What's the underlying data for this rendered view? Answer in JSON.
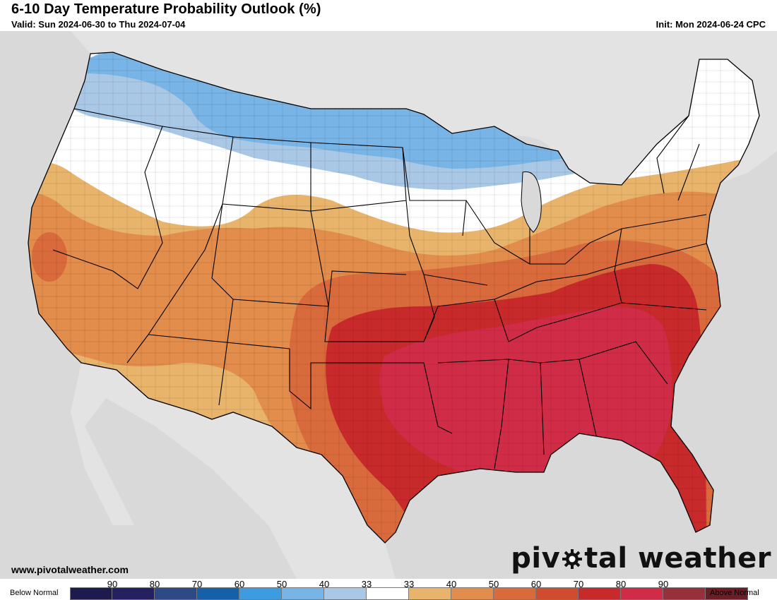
{
  "header": {
    "title": "6-10 Day Temperature Probability Outlook (%)",
    "valid": "Valid: Sun 2024-06-30 to Thu 2024-07-04",
    "init": "Init: Mon 2024-06-24 CPC"
  },
  "footer": {
    "site": "www.pivotalweather.com",
    "brand_left": "piv",
    "brand_right": "tal weather"
  },
  "legend": {
    "below_label": "Below Normal",
    "above_label": "Above Normal",
    "swatches": [
      {
        "color": "#1d1a4d"
      },
      {
        "color": "#25205f"
      },
      {
        "color": "#2d4a86"
      },
      {
        "color": "#1560a8"
      },
      {
        "color": "#3d9be0"
      },
      {
        "color": "#79b4e6"
      },
      {
        "color": "#a9c8e6"
      },
      {
        "color": "#ffffff"
      },
      {
        "color": "#e8b46b"
      },
      {
        "color": "#e38d4c"
      },
      {
        "color": "#d96a3c"
      },
      {
        "color": "#d14b30"
      },
      {
        "color": "#c8292a"
      },
      {
        "color": "#d12c47"
      },
      {
        "color": "#96303a"
      },
      {
        "color": "#6a1f26"
      }
    ],
    "ticks": [
      "90",
      "80",
      "70",
      "60",
      "50",
      "40",
      "33",
      "33",
      "40",
      "50",
      "60",
      "70",
      "80",
      "90"
    ]
  },
  "colors": {
    "land": "#ffffff",
    "background": "#d9d9d9",
    "below_40": "#a9c8e6",
    "below_50": "#79b4e6",
    "above_40": "#e8b46b",
    "above_50": "#e38d4c",
    "above_60": "#d96a3c",
    "above_70": "#c8292a",
    "above_80": "#d12c47"
  }
}
